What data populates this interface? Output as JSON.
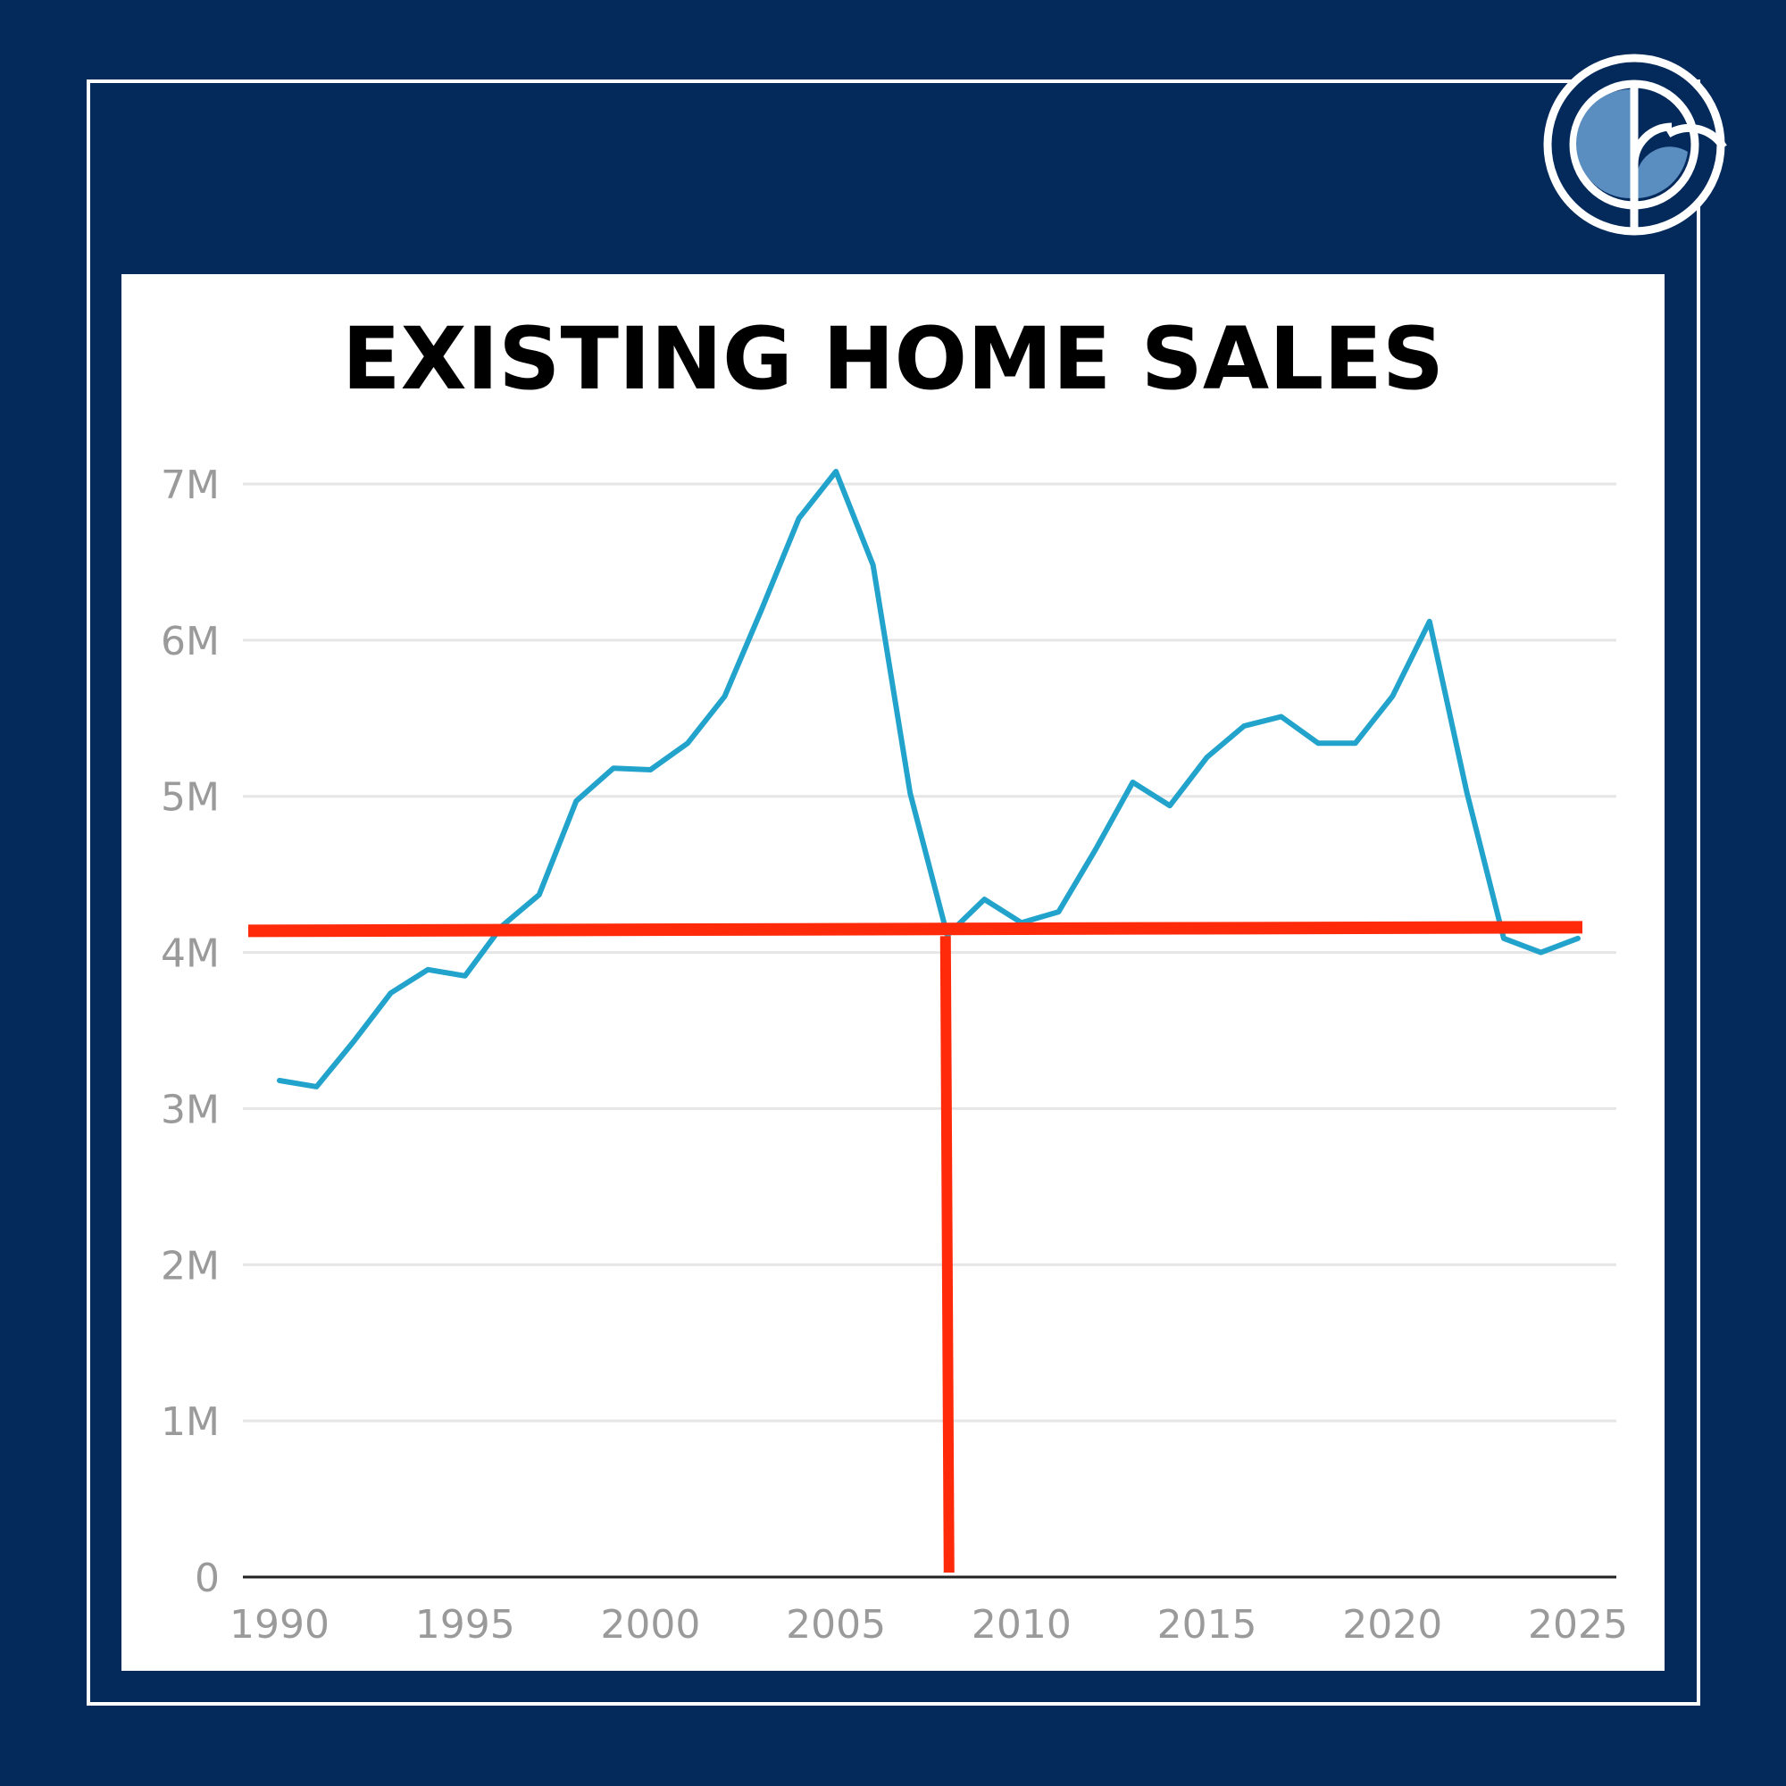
{
  "chart_data": {
    "type": "line",
    "title": "EXISTING HOME SALES",
    "xlabel": "",
    "ylabel": "",
    "x": [
      1990,
      1991,
      1992,
      1993,
      1994,
      1995,
      1996,
      1997,
      1998,
      1999,
      2000,
      2001,
      2002,
      2003,
      2004,
      2005,
      2006,
      2007,
      2008,
      2009,
      2010,
      2011,
      2012,
      2013,
      2014,
      2015,
      2016,
      2017,
      2018,
      2019,
      2020,
      2021,
      2022,
      2023,
      2024,
      2025
    ],
    "series": [
      {
        "name": "Existing Home Sales",
        "color": "#22a3cc",
        "values": [
          3.18,
          3.14,
          3.43,
          3.74,
          3.89,
          3.85,
          4.17,
          4.37,
          4.97,
          5.18,
          5.17,
          5.34,
          5.64,
          6.2,
          6.78,
          7.08,
          6.48,
          5.02,
          4.11,
          4.34,
          4.19,
          4.26,
          4.66,
          5.09,
          4.94,
          5.25,
          5.45,
          5.51,
          5.34,
          5.34,
          5.64,
          6.12,
          5.03,
          4.09,
          4.0,
          4.09
        ]
      }
    ],
    "xticks": [
      "1990",
      "1995",
      "2000",
      "2005",
      "2010",
      "2015",
      "2020",
      "2025"
    ],
    "xtick_values": [
      1990,
      1995,
      2000,
      2005,
      2010,
      2015,
      2020,
      2025
    ],
    "yticks": [
      "0",
      "1M",
      "2M",
      "3M",
      "4M",
      "5M",
      "6M",
      "7M"
    ],
    "ytick_values": [
      0,
      1,
      2,
      3,
      4,
      5,
      6,
      7
    ],
    "xlim": [
      1990,
      2025
    ],
    "ylim": [
      0,
      7
    ],
    "grid": true,
    "annotations": [
      {
        "type": "hline",
        "value": 4.15,
        "x_from": 1990,
        "x_to": 2025,
        "color": "#ff2a0a"
      },
      {
        "type": "vline",
        "value": 2008,
        "y_from": 0,
        "y_to": 4.15,
        "color": "#ff2a0a"
      }
    ]
  },
  "colors": {
    "background": "#042a5c",
    "panel": "#ffffff",
    "line": "#22a3cc",
    "annotation": "#ff2a0a",
    "grid": "#e6e6e6",
    "tick": "#9a9a9a",
    "logo_fill": "#5b8ec0"
  },
  "logo": {
    "name": "brand-logo"
  }
}
